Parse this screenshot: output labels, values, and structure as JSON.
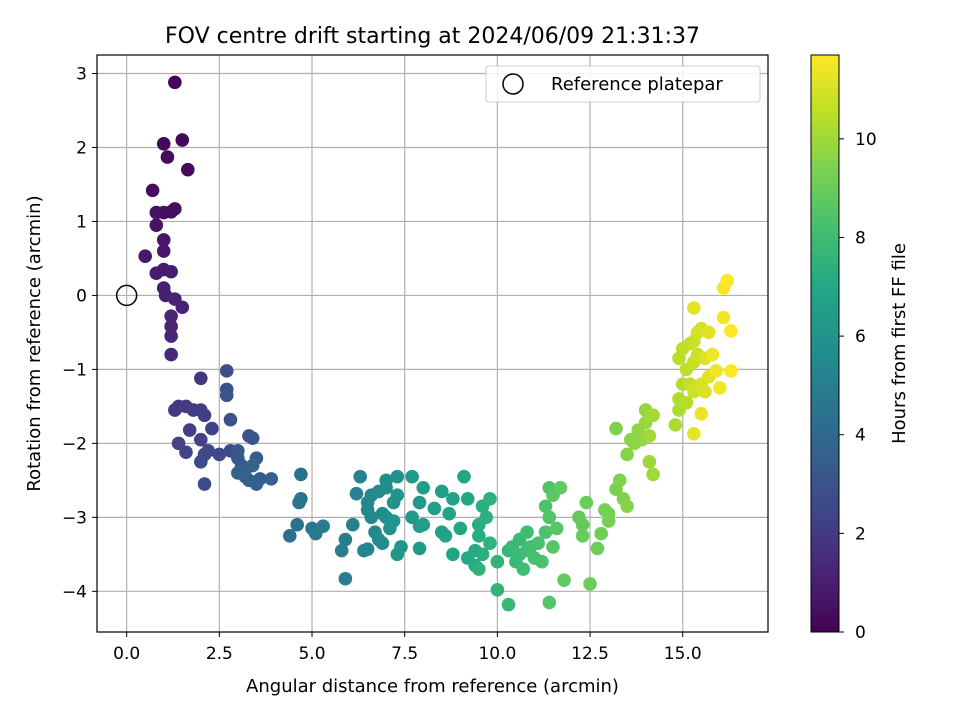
{
  "chart_data": {
    "type": "scatter",
    "title": "FOV centre drift starting at 2024/06/09 21:31:37",
    "xlabel": "Angular distance from reference (arcmin)",
    "ylabel": "Rotation from reference (arcmin)",
    "colorbar_label": "Hours from first FF file",
    "xlim": [
      -0.8,
      17.3
    ],
    "ylim": [
      -4.55,
      3.25
    ],
    "clim": [
      0,
      11.7
    ],
    "x_ticks": [
      "0.0",
      "2.5",
      "5.0",
      "7.5",
      "10.0",
      "12.5",
      "15.0"
    ],
    "x_tick_values": [
      0,
      2.5,
      5,
      7.5,
      10,
      12.5,
      15
    ],
    "y_ticks": [
      "−4",
      "−3",
      "−2",
      "−1",
      "0",
      "1",
      "2",
      "3"
    ],
    "y_tick_values": [
      -4,
      -3,
      -2,
      -1,
      0,
      1,
      2,
      3
    ],
    "colorbar_ticks": [
      "0",
      "2",
      "4",
      "6",
      "8",
      "10"
    ],
    "colorbar_tick_values": [
      0,
      2,
      4,
      6,
      8,
      10
    ],
    "grid": true,
    "legend": {
      "placement": "top-right",
      "label": "Reference platepar"
    },
    "reference_point": {
      "x": 0,
      "y": 0
    },
    "points": [
      [
        1.3,
        2.88,
        0.1
      ],
      [
        1.0,
        2.05,
        0.2
      ],
      [
        1.5,
        2.1,
        0.25
      ],
      [
        1.1,
        1.87,
        0.3
      ],
      [
        1.65,
        1.7,
        0.35
      ],
      [
        0.7,
        1.42,
        0.4
      ],
      [
        1.3,
        1.17,
        0.45
      ],
      [
        1.2,
        1.13,
        0.5
      ],
      [
        1.0,
        1.12,
        0.5
      ],
      [
        0.8,
        1.12,
        0.55
      ],
      [
        0.8,
        0.95,
        0.6
      ],
      [
        1.0,
        0.75,
        0.7
      ],
      [
        1.0,
        0.6,
        0.75
      ],
      [
        0.5,
        0.53,
        0.8
      ],
      [
        1.0,
        0.35,
        0.85
      ],
      [
        0.8,
        0.3,
        0.9
      ],
      [
        1.2,
        0.32,
        0.95
      ],
      [
        1.0,
        0.1,
        1.0
      ],
      [
        1.05,
        0.0,
        1.05
      ],
      [
        1.3,
        -0.05,
        1.1
      ],
      [
        1.5,
        -0.16,
        1.15
      ],
      [
        1.2,
        -0.28,
        1.2
      ],
      [
        1.2,
        -0.42,
        1.25
      ],
      [
        1.2,
        -0.55,
        1.3
      ],
      [
        1.2,
        -0.8,
        1.35
      ],
      [
        2.0,
        -1.12,
        1.8
      ],
      [
        1.3,
        -1.55,
        1.9
      ],
      [
        1.4,
        -1.5,
        1.95
      ],
      [
        1.6,
        -1.5,
        2.0
      ],
      [
        1.8,
        -1.55,
        2.05
      ],
      [
        2.0,
        -1.55,
        2.1
      ],
      [
        2.1,
        -1.62,
        2.15
      ],
      [
        1.7,
        -1.82,
        2.2
      ],
      [
        2.3,
        -1.8,
        2.25
      ],
      [
        2.0,
        -1.95,
        2.3
      ],
      [
        1.4,
        -2.0,
        2.35
      ],
      [
        1.6,
        -2.12,
        2.4
      ],
      [
        2.1,
        -2.15,
        2.45
      ],
      [
        2.2,
        -2.1,
        2.5
      ],
      [
        2.5,
        -2.15,
        2.55
      ],
      [
        2.8,
        -2.1,
        2.6
      ],
      [
        2.0,
        -2.25,
        2.65
      ],
      [
        2.1,
        -2.55,
        2.7
      ],
      [
        2.7,
        -1.02,
        2.8
      ],
      [
        2.7,
        -1.27,
        2.9
      ],
      [
        2.7,
        -1.35,
        2.95
      ],
      [
        2.8,
        -1.68,
        3.0
      ],
      [
        3.3,
        -1.9,
        3.1
      ],
      [
        3.4,
        -1.93,
        3.15
      ],
      [
        3.0,
        -2.1,
        3.2
      ],
      [
        3.0,
        -2.2,
        3.25
      ],
      [
        3.1,
        -2.3,
        3.3
      ],
      [
        3.2,
        -2.35,
        3.35
      ],
      [
        3.5,
        -2.2,
        3.4
      ],
      [
        3.6,
        -2.48,
        3.45
      ],
      [
        3.5,
        -2.55,
        3.5
      ],
      [
        3.3,
        -2.5,
        3.55
      ],
      [
        3.9,
        -2.48,
        3.6
      ],
      [
        3.0,
        -2.4,
        3.65
      ],
      [
        3.2,
        -2.45,
        3.7
      ],
      [
        3.4,
        -2.3,
        3.75
      ],
      [
        4.4,
        -3.25,
        4.2
      ],
      [
        4.6,
        -3.1,
        4.3
      ],
      [
        4.7,
        -2.42,
        4.4
      ],
      [
        4.65,
        -2.8,
        4.45
      ],
      [
        4.7,
        -2.75,
        4.5
      ],
      [
        5.0,
        -3.15,
        4.6
      ],
      [
        5.1,
        -3.22,
        4.7
      ],
      [
        5.3,
        -3.12,
        4.8
      ],
      [
        5.8,
        -3.45,
        4.9
      ],
      [
        5.9,
        -3.83,
        4.95
      ],
      [
        5.9,
        -3.3,
        5.0
      ],
      [
        6.1,
        -3.1,
        5.05
      ],
      [
        6.2,
        -2.68,
        5.1
      ],
      [
        6.3,
        -2.45,
        5.15
      ],
      [
        6.4,
        -3.45,
        5.2
      ],
      [
        6.5,
        -3.43,
        5.25
      ],
      [
        6.5,
        -2.8,
        5.3
      ],
      [
        6.6,
        -2.7,
        5.35
      ],
      [
        6.5,
        -2.9,
        5.4
      ],
      [
        6.6,
        -3.0,
        5.45
      ],
      [
        6.7,
        -3.2,
        5.5
      ],
      [
        6.8,
        -3.3,
        5.55
      ],
      [
        6.9,
        -2.95,
        5.6
      ],
      [
        6.9,
        -3.35,
        5.65
      ],
      [
        6.8,
        -2.65,
        5.7
      ],
      [
        7.0,
        -2.6,
        5.75
      ],
      [
        7.0,
        -2.5,
        5.8
      ],
      [
        7.0,
        -3.0,
        5.8
      ],
      [
        7.1,
        -3.15,
        5.85
      ],
      [
        7.2,
        -2.8,
        5.9
      ],
      [
        7.3,
        -2.45,
        5.95
      ],
      [
        7.3,
        -2.7,
        6.0
      ],
      [
        7.2,
        -3.05,
        6.05
      ],
      [
        7.4,
        -3.4,
        6.1
      ],
      [
        7.3,
        -3.5,
        6.15
      ],
      [
        7.7,
        -3.0,
        6.2
      ],
      [
        7.7,
        -2.45,
        6.25
      ],
      [
        7.9,
        -2.8,
        6.3
      ],
      [
        7.9,
        -3.12,
        6.35
      ],
      [
        7.9,
        -3.42,
        6.4
      ],
      [
        8.0,
        -3.1,
        6.45
      ],
      [
        8.0,
        -2.6,
        6.5
      ],
      [
        8.3,
        -2.88,
        6.55
      ],
      [
        8.5,
        -2.65,
        6.6
      ],
      [
        8.5,
        -3.2,
        6.65
      ],
      [
        8.6,
        -3.25,
        6.7
      ],
      [
        8.7,
        -2.95,
        6.75
      ],
      [
        8.8,
        -2.75,
        6.8
      ],
      [
        8.8,
        -3.5,
        6.85
      ],
      [
        9.0,
        -3.15,
        6.9
      ],
      [
        9.1,
        -2.45,
        6.95
      ],
      [
        9.2,
        -2.75,
        7.0
      ],
      [
        9.2,
        -3.55,
        7.05
      ],
      [
        9.4,
        -3.65,
        7.1
      ],
      [
        9.4,
        -3.45,
        7.15
      ],
      [
        9.5,
        -3.1,
        7.2
      ],
      [
        9.5,
        -3.25,
        7.25
      ],
      [
        9.6,
        -2.85,
        7.3
      ],
      [
        9.6,
        -3.5,
        7.35
      ],
      [
        9.7,
        -3.0,
        7.4
      ],
      [
        9.8,
        -2.75,
        7.45
      ],
      [
        9.5,
        -3.7,
        7.5
      ],
      [
        9.8,
        -3.35,
        7.55
      ],
      [
        10.0,
        -3.6,
        7.6
      ],
      [
        10.0,
        -3.98,
        7.65
      ],
      [
        10.3,
        -3.45,
        7.7
      ],
      [
        10.3,
        -4.18,
        7.75
      ],
      [
        10.4,
        -3.4,
        7.8
      ],
      [
        10.5,
        -3.6,
        7.85
      ],
      [
        10.6,
        -3.3,
        7.9
      ],
      [
        10.6,
        -3.5,
        7.95
      ],
      [
        10.7,
        -3.7,
        8.0
      ],
      [
        10.8,
        -3.45,
        8.05
      ],
      [
        10.8,
        -3.2,
        8.1
      ],
      [
        10.9,
        -3.4,
        8.15
      ],
      [
        11.0,
        -3.55,
        8.2
      ],
      [
        11.1,
        -3.35,
        8.25
      ],
      [
        11.2,
        -3.6,
        8.3
      ],
      [
        11.3,
        -3.2,
        8.35
      ],
      [
        11.3,
        -2.85,
        8.4
      ],
      [
        11.4,
        -2.6,
        8.45
      ],
      [
        11.4,
        -3.0,
        8.5
      ],
      [
        11.4,
        -4.15,
        8.55
      ],
      [
        11.5,
        -3.4,
        8.6
      ],
      [
        11.6,
        -3.15,
        8.65
      ],
      [
        11.5,
        -2.7,
        8.7
      ],
      [
        11.7,
        -2.6,
        8.75
      ],
      [
        11.8,
        -3.85,
        8.8
      ],
      [
        12.2,
        -3.0,
        8.85
      ],
      [
        12.3,
        -3.1,
        8.9
      ],
      [
        12.3,
        -3.25,
        8.95
      ],
      [
        12.4,
        -2.8,
        9.0
      ],
      [
        12.5,
        -3.9,
        9.05
      ],
      [
        12.7,
        -3.42,
        9.1
      ],
      [
        12.8,
        -3.22,
        9.15
      ],
      [
        12.9,
        -2.9,
        9.2
      ],
      [
        13.0,
        -2.95,
        9.25
      ],
      [
        13.0,
        -3.05,
        9.3
      ],
      [
        13.2,
        -2.62,
        9.35
      ],
      [
        13.2,
        -1.8,
        9.4
      ],
      [
        13.3,
        -2.5,
        9.45
      ],
      [
        13.4,
        -2.75,
        9.5
      ],
      [
        13.5,
        -2.85,
        9.55
      ],
      [
        13.5,
        -2.15,
        9.6
      ],
      [
        13.6,
        -1.95,
        9.65
      ],
      [
        13.7,
        -2.0,
        9.7
      ],
      [
        13.8,
        -1.82,
        9.75
      ],
      [
        13.9,
        -1.95,
        9.8
      ],
      [
        14.0,
        -1.55,
        9.85
      ],
      [
        14.0,
        -1.72,
        9.9
      ],
      [
        14.1,
        -2.25,
        9.95
      ],
      [
        14.2,
        -2.42,
        10.0
      ],
      [
        14.1,
        -1.9,
        10.05
      ],
      [
        14.2,
        -1.62,
        10.1
      ],
      [
        14.8,
        -1.75,
        10.2
      ],
      [
        14.9,
        -1.55,
        10.25
      ],
      [
        14.9,
        -1.4,
        10.3
      ],
      [
        15.0,
        -1.2,
        10.35
      ],
      [
        15.1,
        -1.45,
        10.4
      ],
      [
        14.9,
        -0.85,
        10.45
      ],
      [
        15.0,
        -0.72,
        10.5
      ],
      [
        15.1,
        -1.0,
        10.55
      ],
      [
        15.2,
        -0.65,
        10.6
      ],
      [
        15.2,
        -1.2,
        10.65
      ],
      [
        15.3,
        -0.9,
        10.7
      ],
      [
        15.3,
        -0.62,
        10.75
      ],
      [
        15.4,
        -0.8,
        10.8
      ],
      [
        15.3,
        -1.3,
        10.85
      ],
      [
        15.4,
        -0.5,
        10.9
      ],
      [
        15.5,
        -0.45,
        10.95
      ],
      [
        15.5,
        -1.2,
        11.0
      ],
      [
        15.6,
        -1.3,
        11.05
      ],
      [
        15.6,
        -0.85,
        11.1
      ],
      [
        15.7,
        -0.5,
        11.15
      ],
      [
        15.7,
        -1.1,
        11.2
      ],
      [
        15.3,
        -0.17,
        11.25
      ],
      [
        15.3,
        -1.87,
        11.3
      ],
      [
        15.5,
        -1.6,
        11.35
      ],
      [
        15.8,
        -0.8,
        11.4
      ],
      [
        15.9,
        -1.02,
        11.45
      ],
      [
        16.0,
        -1.25,
        11.5
      ],
      [
        16.1,
        -0.3,
        11.55
      ],
      [
        16.1,
        0.1,
        11.6
      ],
      [
        16.2,
        0.2,
        11.65
      ],
      [
        16.3,
        -0.48,
        11.7
      ],
      [
        16.3,
        -1.02,
        11.7
      ]
    ]
  }
}
